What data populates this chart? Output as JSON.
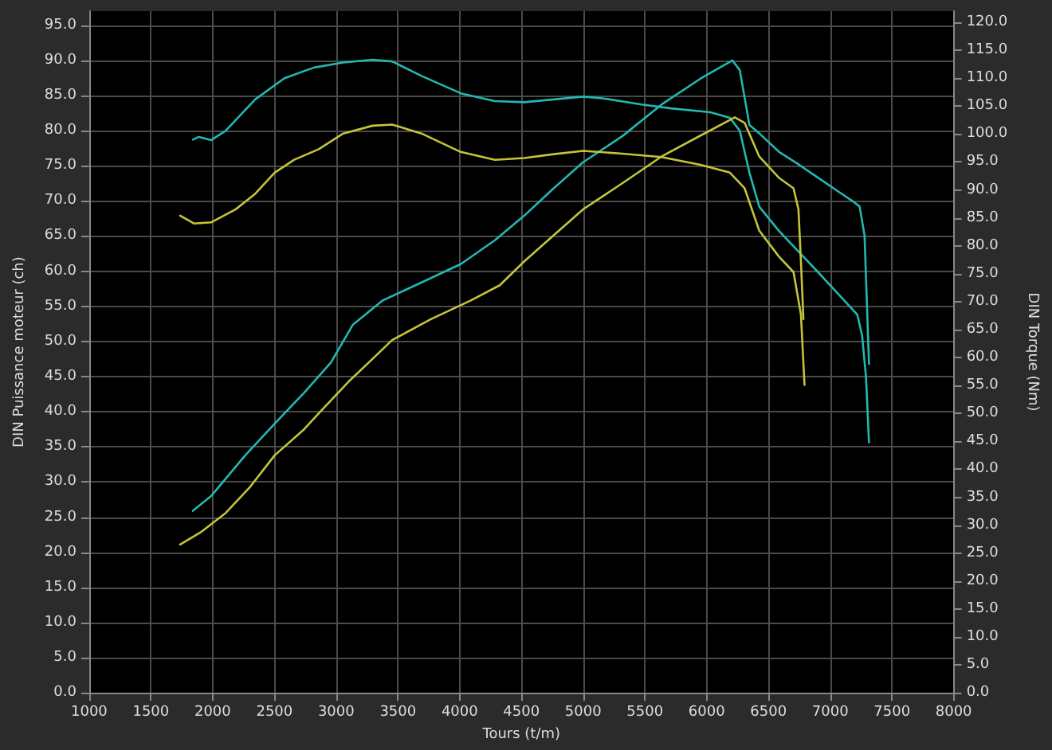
{
  "chart_data": {
    "type": "line",
    "xlabel": "Tours (t/m)",
    "ylabel": "DIN Puissance moteur (ch)",
    "y2label": "DIN Torque (Nm)",
    "xlim": [
      1000,
      8000
    ],
    "xticks": [
      1000,
      1500,
      2000,
      2500,
      3000,
      3500,
      4000,
      4500,
      5000,
      5500,
      6000,
      6500,
      7000,
      7500,
      8000
    ],
    "ylim": [
      0,
      97
    ],
    "yticks": [
      {
        "value": 0,
        "label": "0.0"
      },
      {
        "value": 5,
        "label": "5.0"
      },
      {
        "value": 10,
        "label": "10.0"
      },
      {
        "value": 15,
        "label": "15.0"
      },
      {
        "value": 20,
        "label": "20.0"
      },
      {
        "value": 25,
        "label": "25.0"
      },
      {
        "value": 30,
        "label": "30.0"
      },
      {
        "value": 35,
        "label": "35.0"
      },
      {
        "value": 40,
        "label": "40.0"
      },
      {
        "value": 45,
        "label": "45.0"
      },
      {
        "value": 50,
        "label": "50.0"
      },
      {
        "value": 55,
        "label": "55.0"
      },
      {
        "value": 60,
        "label": "60.0"
      },
      {
        "value": 65,
        "label": "65.0"
      },
      {
        "value": 70,
        "label": "70.0"
      },
      {
        "value": 75,
        "label": "75.0"
      },
      {
        "value": 80,
        "label": "80.0"
      },
      {
        "value": 85,
        "label": "85.0"
      },
      {
        "value": 90,
        "label": "90.0"
      },
      {
        "value": 95,
        "label": "95.0"
      }
    ],
    "y2lim": [
      0,
      122
    ],
    "y2ticks": [
      {
        "value": 0,
        "label": "0.0"
      },
      {
        "value": 5,
        "label": "5.0"
      },
      {
        "value": 10,
        "label": "10.0"
      },
      {
        "value": 15,
        "label": "15.0"
      },
      {
        "value": 20,
        "label": "20.0"
      },
      {
        "value": 25,
        "label": "25.0"
      },
      {
        "value": 30,
        "label": "30.0"
      },
      {
        "value": 35,
        "label": "35.0"
      },
      {
        "value": 40,
        "label": "40.0"
      },
      {
        "value": 45,
        "label": "45.0"
      },
      {
        "value": 50,
        "label": "50.0"
      },
      {
        "value": 55,
        "label": "55.0"
      },
      {
        "value": 60,
        "label": "60.0"
      },
      {
        "value": 65,
        "label": "65.0"
      },
      {
        "value": 70,
        "label": "70.0"
      },
      {
        "value": 75,
        "label": "75.0"
      },
      {
        "value": 80,
        "label": "80.0"
      },
      {
        "value": 85,
        "label": "85.0"
      },
      {
        "value": 90,
        "label": "90.0"
      },
      {
        "value": 95,
        "label": "95.0"
      },
      {
        "value": 100,
        "label": "100.0"
      },
      {
        "value": 105,
        "label": "105.0"
      },
      {
        "value": 110,
        "label": "110.0"
      },
      {
        "value": 115,
        "label": "115.0"
      },
      {
        "value": 120,
        "label": "120.0"
      }
    ],
    "grid": true,
    "marker": "none",
    "line_style": "solid",
    "series": [
      {
        "color": "#22b8b0",
        "x": [
          1840,
          1987,
          2264,
          2502,
          2740,
          2957,
          3136,
          3373,
          3691,
          4008,
          4285,
          4523,
          4761,
          4999,
          5316,
          5633,
          5950,
          6208,
          6268,
          6346,
          6426,
          6584,
          6743,
          6901,
          7060,
          7179,
          7238,
          7278,
          7314
        ],
        "values": [
          25.9,
          28.0,
          33.8,
          38.3,
          42.7,
          47.0,
          52.4,
          55.8,
          58.4,
          61.0,
          64.4,
          67.9,
          71.8,
          75.5,
          79.2,
          83.7,
          87.4,
          90.0,
          88.6,
          80.8,
          79.6,
          77.0,
          75.2,
          73.3,
          71.4,
          70.0,
          69.2,
          65.1,
          46.8
        ]
      },
      {
        "color": "#22b8b0",
        "axis": "y2",
        "x": [
          1840,
          1887,
          1987,
          2106,
          2344,
          2581,
          2819,
          3057,
          3295,
          3453,
          3691,
          4008,
          4285,
          4523,
          4761,
          4999,
          5157,
          5474,
          5712,
          6030,
          6188,
          6268,
          6346,
          6426,
          6584,
          6743,
          6901,
          7060,
          7219,
          7258,
          7290,
          7314
        ],
        "values": [
          99.0,
          99.5,
          98.9,
          100.6,
          106.2,
          110.0,
          111.9,
          112.8,
          113.3,
          113.0,
          110.4,
          107.3,
          105.9,
          105.7,
          106.2,
          106.7,
          106.4,
          105.3,
          104.6,
          103.9,
          102.9,
          100.6,
          93.1,
          87.0,
          82.7,
          79.0,
          75.3,
          71.5,
          67.7,
          64.0,
          56.5,
          44.8
        ]
      },
      {
        "color": "#c4c43a",
        "x": [
          1737,
          1907,
          2106,
          2303,
          2502,
          2740,
          2898,
          3096,
          3275,
          3453,
          3770,
          4087,
          4325,
          4523,
          4761,
          4999,
          5316,
          5633,
          5950,
          6228,
          6307,
          6426,
          6584,
          6703,
          6743,
          6763,
          6783
        ],
        "values": [
          21.1,
          22.9,
          25.6,
          29.3,
          33.8,
          37.5,
          40.5,
          44.2,
          47.2,
          50.2,
          53.2,
          55.8,
          58.0,
          61.4,
          65.1,
          68.8,
          72.5,
          76.3,
          79.3,
          81.9,
          81.1,
          76.3,
          73.3,
          71.8,
          68.8,
          61.4,
          53.2
        ]
      },
      {
        "color": "#c4c43a",
        "axis": "y2",
        "x": [
          1737,
          1848,
          1987,
          2184,
          2344,
          2502,
          2660,
          2859,
          3057,
          3295,
          3453,
          3691,
          4008,
          4285,
          4523,
          4761,
          4999,
          5316,
          5633,
          5950,
          6188,
          6307,
          6426,
          6584,
          6703,
          6763,
          6792
        ],
        "values": [
          85.4,
          84.0,
          84.2,
          86.5,
          89.3,
          93.1,
          95.4,
          97.3,
          100.1,
          101.5,
          101.7,
          100.1,
          96.8,
          95.4,
          95.7,
          96.4,
          97.0,
          96.5,
          95.9,
          94.5,
          93.1,
          90.3,
          82.7,
          78.1,
          75.3,
          67.7,
          55.1
        ]
      }
    ]
  }
}
